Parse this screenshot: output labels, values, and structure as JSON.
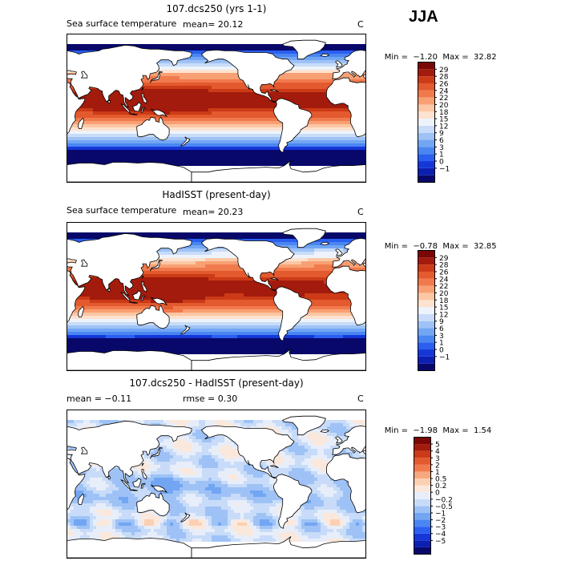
{
  "season": "JJA",
  "colors": {
    "sst": [
      "#08086b",
      "#0b1fb0",
      "#1537d8",
      "#2a5ff0",
      "#4a86f2",
      "#72a6f3",
      "#9ec2f6",
      "#c8dcf9",
      "#eef3fb",
      "#fde2cf",
      "#fcc7a4",
      "#f8a074",
      "#f17a4d",
      "#e35a2f",
      "#cc3a17",
      "#a21b0c",
      "#7a0707"
    ],
    "diff": [
      "#08086b",
      "#0b1fb0",
      "#1537d8",
      "#2a5ff0",
      "#4a86f2",
      "#72a6f3",
      "#9ec2f6",
      "#c8dcf9",
      "#e8eef9",
      "#fbe8dc",
      "#fcd0b3",
      "#f8a87e",
      "#f17a4d",
      "#e35a2f",
      "#cc3a17",
      "#a21b0c",
      "#7a0707"
    ]
  },
  "panels": [
    {
      "title": "107.dcs250 (yrs 1-1)",
      "left_text": "Sea surface temperature",
      "stats_text": "mean=  20.12",
      "unit": "C",
      "min_label": "Min =",
      "min_value": "−1.20",
      "max_label": "Max =",
      "max_value": "32.82",
      "colorbar_labels": [
        "29",
        "28",
        "26",
        "24",
        "22",
        "20",
        "18",
        "15",
        "12",
        "9",
        "6",
        "3",
        "1",
        "0",
        "−1"
      ],
      "kind": "sst"
    },
    {
      "title": "HadISST (present-day)",
      "left_text": "Sea surface temperature",
      "stats_text": "mean=  20.23",
      "unit": "C",
      "min_label": "Min =",
      "min_value": "−0.78",
      "max_label": "Max =",
      "max_value": "32.85",
      "colorbar_labels": [
        "29",
        "28",
        "26",
        "24",
        "22",
        "20",
        "18",
        "15",
        "12",
        "9",
        "6",
        "3",
        "1",
        "0",
        "−1"
      ],
      "kind": "sst"
    },
    {
      "title": "107.dcs250 - HadISST (present-day)",
      "left_text": "mean =   −0.11",
      "stats_text": "rmse =    0.30",
      "unit": "C",
      "min_label": "Min =",
      "min_value": "−1.98",
      "max_label": "Max =",
      "max_value": "1.54",
      "colorbar_labels": [
        "5",
        "4",
        "3",
        "2",
        "1",
        "0.5",
        "0.2",
        "0",
        "−0.2",
        "−0.5",
        "−1",
        "−2",
        "−3",
        "−4",
        "−5"
      ],
      "kind": "diff"
    }
  ]
}
